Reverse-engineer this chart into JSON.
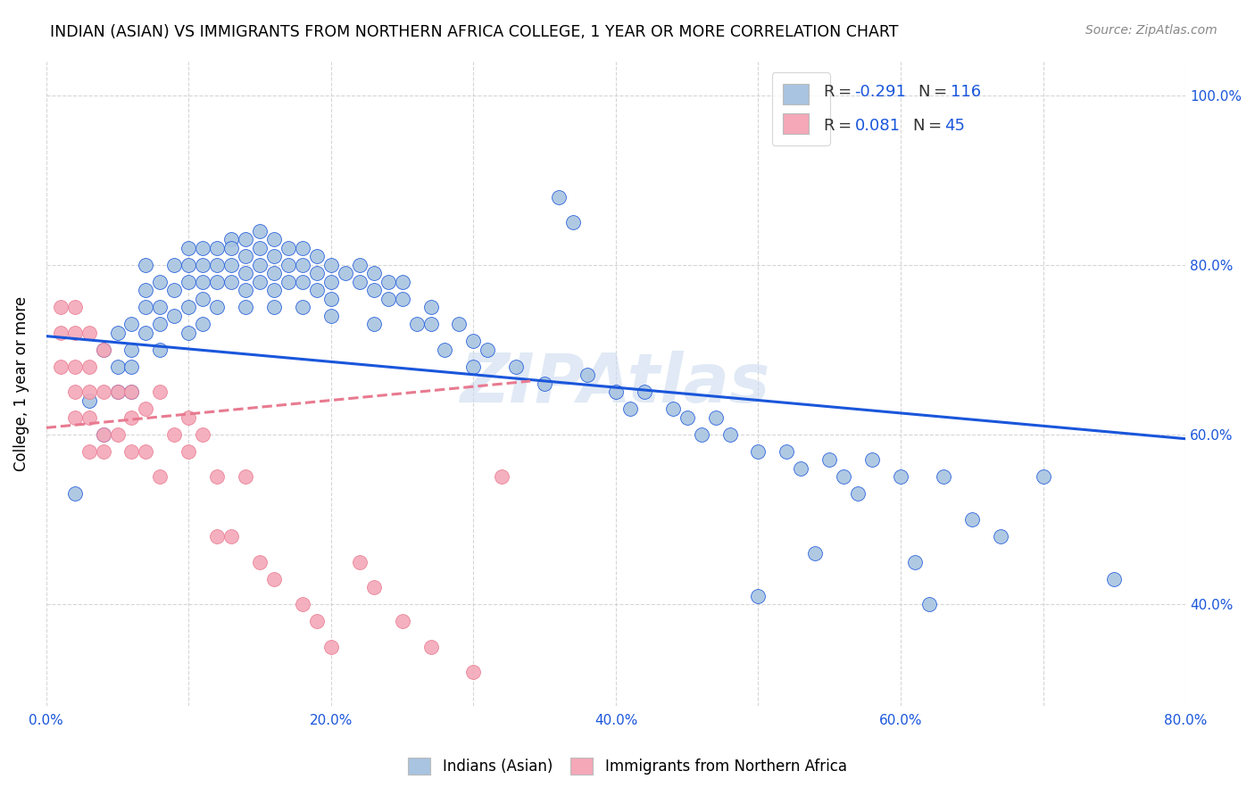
{
  "title": "INDIAN (ASIAN) VS IMMIGRANTS FROM NORTHERN AFRICA COLLEGE, 1 YEAR OR MORE CORRELATION CHART",
  "source": "Source: ZipAtlas.com",
  "ylabel": "College, 1 year or more",
  "legend_label1": "Indians (Asian)",
  "legend_label2": "Immigrants from Northern Africa",
  "r1": "-0.291",
  "n1": "116",
  "r2": "0.081",
  "n2": "45",
  "color_blue": "#a8c4e0",
  "color_pink": "#f4a8b8",
  "line_blue": "#1a56db",
  "line_pink": "#e87a90",
  "watermark": "ZIPAtlas",
  "x_range": [
    0.0,
    0.8
  ],
  "y_range": [
    0.28,
    1.04
  ],
  "blue_scatter_x": [
    0.02,
    0.03,
    0.04,
    0.04,
    0.05,
    0.05,
    0.05,
    0.06,
    0.06,
    0.06,
    0.06,
    0.07,
    0.07,
    0.07,
    0.07,
    0.08,
    0.08,
    0.08,
    0.08,
    0.09,
    0.09,
    0.09,
    0.1,
    0.1,
    0.1,
    0.1,
    0.1,
    0.11,
    0.11,
    0.11,
    0.11,
    0.11,
    0.12,
    0.12,
    0.12,
    0.12,
    0.13,
    0.13,
    0.13,
    0.13,
    0.14,
    0.14,
    0.14,
    0.14,
    0.14,
    0.15,
    0.15,
    0.15,
    0.15,
    0.16,
    0.16,
    0.16,
    0.16,
    0.16,
    0.17,
    0.17,
    0.17,
    0.18,
    0.18,
    0.18,
    0.18,
    0.19,
    0.19,
    0.19,
    0.2,
    0.2,
    0.2,
    0.2,
    0.21,
    0.22,
    0.22,
    0.23,
    0.23,
    0.23,
    0.24,
    0.24,
    0.25,
    0.25,
    0.26,
    0.27,
    0.27,
    0.28,
    0.29,
    0.3,
    0.3,
    0.31,
    0.33,
    0.35,
    0.36,
    0.37,
    0.38,
    0.4,
    0.41,
    0.42,
    0.44,
    0.45,
    0.46,
    0.47,
    0.48,
    0.5,
    0.5,
    0.52,
    0.53,
    0.54,
    0.55,
    0.56,
    0.57,
    0.58,
    0.6,
    0.61,
    0.62,
    0.63,
    0.65,
    0.67,
    0.7,
    0.75
  ],
  "blue_scatter_y": [
    0.53,
    0.64,
    0.7,
    0.6,
    0.72,
    0.68,
    0.65,
    0.73,
    0.7,
    0.68,
    0.65,
    0.8,
    0.77,
    0.75,
    0.72,
    0.78,
    0.75,
    0.73,
    0.7,
    0.8,
    0.77,
    0.74,
    0.82,
    0.8,
    0.78,
    0.75,
    0.72,
    0.82,
    0.8,
    0.78,
    0.76,
    0.73,
    0.82,
    0.8,
    0.78,
    0.75,
    0.83,
    0.82,
    0.8,
    0.78,
    0.83,
    0.81,
    0.79,
    0.77,
    0.75,
    0.84,
    0.82,
    0.8,
    0.78,
    0.83,
    0.81,
    0.79,
    0.77,
    0.75,
    0.82,
    0.8,
    0.78,
    0.82,
    0.8,
    0.78,
    0.75,
    0.81,
    0.79,
    0.77,
    0.8,
    0.78,
    0.76,
    0.74,
    0.79,
    0.8,
    0.78,
    0.79,
    0.77,
    0.73,
    0.78,
    0.76,
    0.78,
    0.76,
    0.73,
    0.75,
    0.73,
    0.7,
    0.73,
    0.71,
    0.68,
    0.7,
    0.68,
    0.66,
    0.88,
    0.85,
    0.67,
    0.65,
    0.63,
    0.65,
    0.63,
    0.62,
    0.6,
    0.62,
    0.6,
    0.58,
    0.41,
    0.58,
    0.56,
    0.46,
    0.57,
    0.55,
    0.53,
    0.57,
    0.55,
    0.45,
    0.4,
    0.55,
    0.5,
    0.48,
    0.55,
    0.43
  ],
  "pink_scatter_x": [
    0.01,
    0.01,
    0.01,
    0.02,
    0.02,
    0.02,
    0.02,
    0.02,
    0.03,
    0.03,
    0.03,
    0.03,
    0.03,
    0.04,
    0.04,
    0.04,
    0.04,
    0.05,
    0.05,
    0.06,
    0.06,
    0.06,
    0.07,
    0.07,
    0.08,
    0.08,
    0.09,
    0.1,
    0.1,
    0.11,
    0.12,
    0.12,
    0.13,
    0.14,
    0.15,
    0.16,
    0.18,
    0.19,
    0.2,
    0.22,
    0.23,
    0.25,
    0.27,
    0.3,
    0.32
  ],
  "pink_scatter_y": [
    0.75,
    0.72,
    0.68,
    0.75,
    0.72,
    0.68,
    0.65,
    0.62,
    0.72,
    0.68,
    0.65,
    0.62,
    0.58,
    0.7,
    0.65,
    0.6,
    0.58,
    0.65,
    0.6,
    0.65,
    0.62,
    0.58,
    0.63,
    0.58,
    0.65,
    0.55,
    0.6,
    0.62,
    0.58,
    0.6,
    0.55,
    0.48,
    0.48,
    0.55,
    0.45,
    0.43,
    0.4,
    0.38,
    0.35,
    0.45,
    0.42,
    0.38,
    0.35,
    0.32,
    0.55
  ],
  "blue_line_x": [
    0.0,
    0.8
  ],
  "blue_line_y": [
    0.716,
    0.595
  ],
  "pink_line_x": [
    0.0,
    0.34
  ],
  "pink_line_y": [
    0.608,
    0.663
  ],
  "x_ticks": [
    0.0,
    0.1,
    0.2,
    0.3,
    0.4,
    0.5,
    0.6,
    0.7,
    0.8
  ],
  "x_tick_labels": [
    "0.0%",
    "",
    "20.0%",
    "",
    "40.0%",
    "",
    "60.0%",
    "",
    "80.0%"
  ],
  "y_ticks": [
    0.4,
    0.6,
    0.8,
    1.0
  ],
  "y_tick_labels": [
    "40.0%",
    "60.0%",
    "80.0%",
    "100.0%"
  ]
}
